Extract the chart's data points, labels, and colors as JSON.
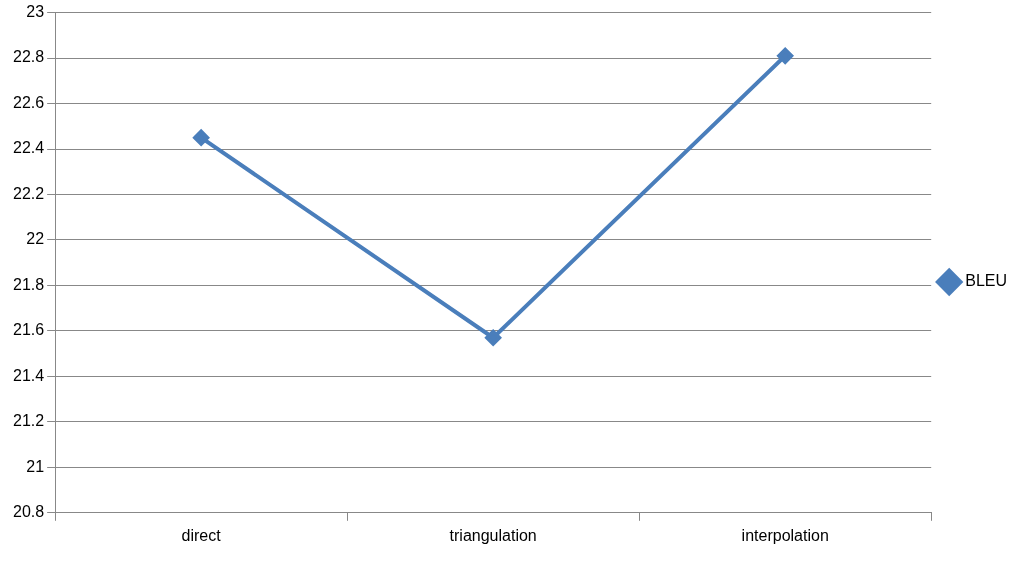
{
  "chart_data": {
    "type": "line",
    "categories": [
      "direct",
      "triangulation",
      "interpolation"
    ],
    "series": [
      {
        "name": "BLEU",
        "color": "#4a7ebb",
        "values": [
          22.45,
          21.57,
          22.81
        ]
      }
    ],
    "ylim": [
      20.8,
      23
    ],
    "yticks": [
      20.8,
      21,
      21.2,
      21.4,
      21.6,
      21.8,
      22,
      22.2,
      22.4,
      22.6,
      22.8,
      23
    ],
    "grid": "y",
    "legend": "right",
    "marker": "diamond",
    "line_style": "solid"
  }
}
